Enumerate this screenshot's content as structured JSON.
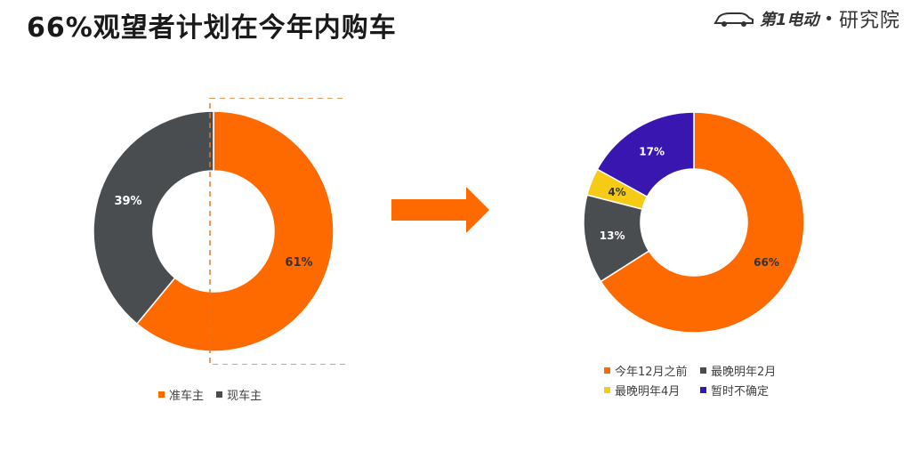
{
  "title": "66%观望者计划在今年内购车",
  "logo": {
    "brand": "第1电动",
    "dot": "•",
    "sub": "研究院",
    "icon": "car-icon"
  },
  "colors": {
    "orange": "#FF6A00",
    "gray": "#4A4D50",
    "yellow": "#F5CB16",
    "purple": "#3A16B0"
  },
  "chart_data": [
    {
      "type": "pie",
      "donut": true,
      "title": "",
      "categories": [
        "准车主",
        "现车主"
      ],
      "values": [
        61,
        39
      ],
      "labels": [
        "61%",
        "39%"
      ],
      "colors": [
        "#FF6A00",
        "#4A4D50"
      ],
      "legend_position": "bottom",
      "highlight": "准车主"
    },
    {
      "type": "pie",
      "donut": true,
      "title": "",
      "categories": [
        "今年12月之前",
        "最晚明年2月",
        "最晚明年4月",
        "暂时不确定"
      ],
      "values": [
        66,
        13,
        4,
        17
      ],
      "labels": [
        "66%",
        "13%",
        "4%",
        "17%"
      ],
      "colors": [
        "#FF6A00",
        "#4A4D50",
        "#F5CB16",
        "#3A16B0"
      ],
      "legend_position": "bottom"
    }
  ]
}
